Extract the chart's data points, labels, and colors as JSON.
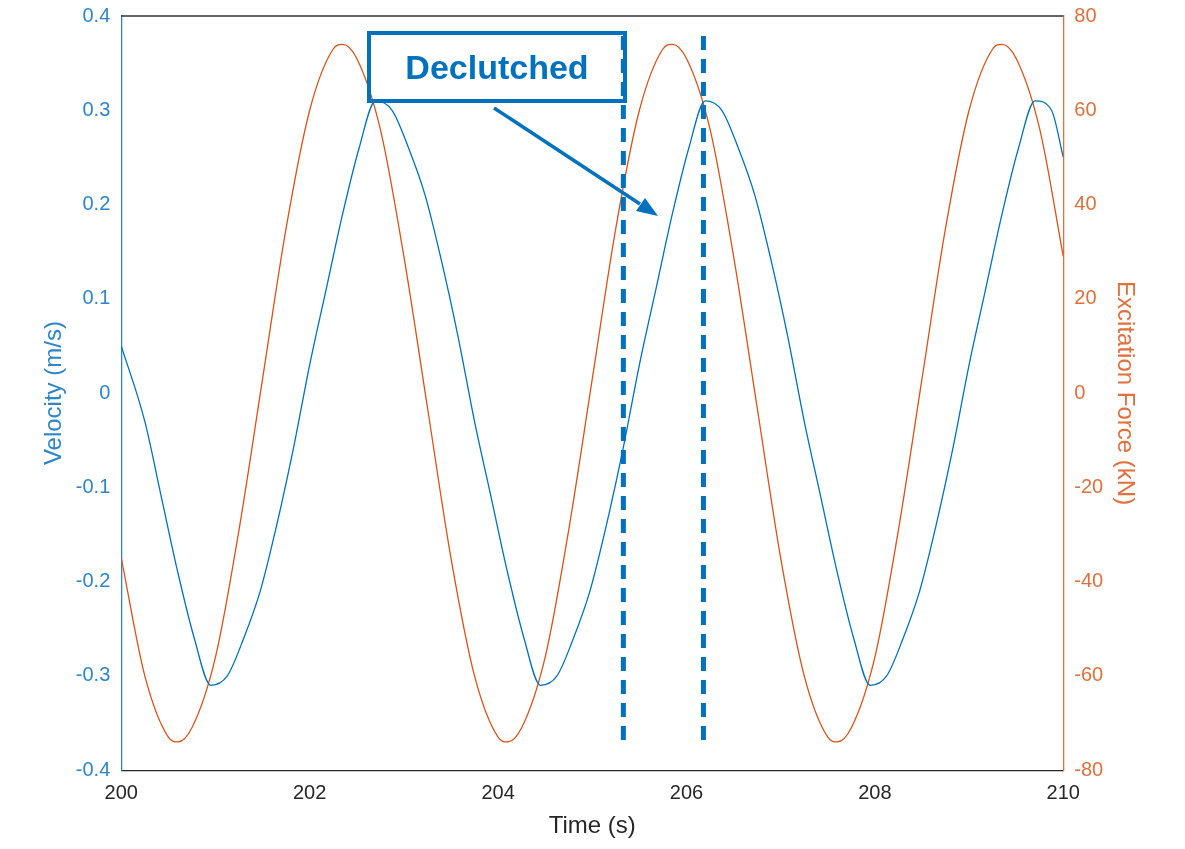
{
  "chart_data": {
    "type": "line",
    "xlabel": "Time (s)",
    "ylabel": "Velocity (m/s)",
    "y2label": "Excitation Force (kN)",
    "xlim": [
      200,
      210
    ],
    "xticks": [
      200,
      202,
      204,
      206,
      208,
      210
    ],
    "ylim": [
      -0.4,
      0.4
    ],
    "yticks": [
      -0.4,
      -0.3,
      -0.2,
      -0.1,
      0,
      0.1,
      0.2,
      0.3,
      0.4
    ],
    "y2lim": [
      -80,
      80
    ],
    "y2ticks": [
      -80,
      -60,
      -40,
      -20,
      0,
      20,
      40,
      60,
      80
    ],
    "grid": false,
    "legend": false,
    "marker": "none",
    "line_style": "solid",
    "series": [
      {
        "color": "#0072bd",
        "x": [
          200,
          200.25,
          200.425,
          200.6,
          200.775,
          200.95,
          201.125,
          201.3,
          201.475,
          201.65,
          201.825,
          202,
          202.175,
          202.35,
          202.525,
          202.7,
          202.875,
          203.05,
          203.225,
          203.4,
          203.575,
          203.75,
          203.925,
          204.1,
          204.275,
          204.45,
          204.625,
          204.8,
          204.975,
          205.15,
          205.325,
          205.5,
          205.675,
          205.85,
          206.025,
          206.2,
          206.375,
          206.55,
          206.725,
          206.9,
          207.075,
          207.25,
          207.425,
          207.6,
          207.775,
          207.95,
          208.125,
          208.3,
          208.475,
          208.65,
          208.825,
          209,
          209.175,
          209.35,
          209.525,
          209.7,
          209.875,
          210
        ],
        "values": [
          0.05,
          -0.03,
          -0.11,
          -0.19,
          -0.26,
          -0.31,
          -0.3,
          -0.26,
          -0.21,
          -0.14,
          -0.06,
          0.03,
          0.11,
          0.19,
          0.26,
          0.31,
          0.3,
          0.26,
          0.21,
          0.14,
          0.06,
          -0.03,
          -0.11,
          -0.19,
          -0.26,
          -0.31,
          -0.3,
          -0.26,
          -0.21,
          -0.14,
          -0.06,
          0.03,
          0.11,
          0.19,
          0.26,
          0.31,
          0.3,
          0.26,
          0.21,
          0.14,
          0.06,
          -0.03,
          -0.11,
          -0.19,
          -0.26,
          -0.31,
          -0.3,
          -0.26,
          -0.21,
          -0.14,
          -0.06,
          0.03,
          0.11,
          0.19,
          0.26,
          0.31,
          0.3,
          0.25
        ]
      },
      {
        "color": "#d95319",
        "axis": "y2",
        "x": [
          200,
          200.25,
          200.5,
          200.6,
          200.75,
          201,
          201.25,
          201.5,
          201.75,
          202,
          202.25,
          202.35,
          202.5,
          202.75,
          203,
          203.25,
          203.5,
          203.75,
          204,
          204.1,
          204.25,
          204.5,
          204.75,
          205,
          205.25,
          205.5,
          205.75,
          205.85,
          206,
          206.25,
          206.5,
          206.75,
          207,
          207.25,
          207.5,
          207.6,
          207.75,
          208,
          208.25,
          208.5,
          208.75,
          209,
          209.25,
          209.35,
          209.5,
          209.75,
          210
        ],
        "values": [
          -35,
          -60,
          -73,
          -74,
          -71,
          -56,
          -29,
          3,
          35,
          60,
          73,
          74,
          71,
          56,
          29,
          -3,
          -35,
          -60,
          -73,
          -74,
          -71,
          -56,
          -29,
          3,
          35,
          60,
          73,
          74,
          71,
          56,
          29,
          -3,
          -35,
          -60,
          -73,
          -74,
          -71,
          -56,
          -29,
          3,
          35,
          60,
          73,
          74,
          71,
          56,
          29
        ]
      }
    ],
    "ref_lines": [
      {
        "axis": "x",
        "value": 205.33,
        "color": "#0072bd",
        "line_style": "dashed"
      },
      {
        "axis": "x",
        "value": 206.18,
        "color": "#0072bd",
        "line_style": "dashed"
      }
    ],
    "annotations": [
      "Declutched"
    ]
  }
}
